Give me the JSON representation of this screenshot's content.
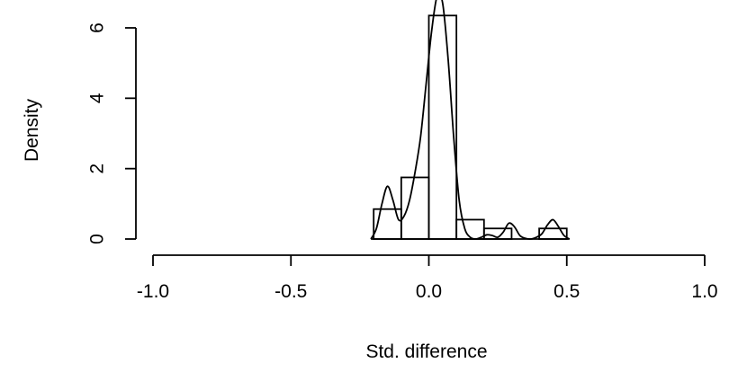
{
  "chart_data": {
    "type": "histogram",
    "title": "",
    "xlabel": "Std. difference",
    "ylabel": "Density",
    "xlim": [
      -1.0,
      1.0
    ],
    "ylim": [
      0,
      6.5
    ],
    "x_ticks": [
      -1.0,
      -0.5,
      0.0,
      0.5,
      1.0
    ],
    "x_tick_labels": [
      "-1.0",
      "-0.5",
      "0.0",
      "0.5",
      "1.0"
    ],
    "y_ticks": [
      0,
      2,
      4,
      6
    ],
    "y_tick_labels": [
      "0",
      "2",
      "4",
      "6"
    ],
    "bins": [
      {
        "x0": -0.2,
        "x1": -0.1,
        "density": 0.85
      },
      {
        "x0": -0.1,
        "x1": 0.0,
        "density": 1.75
      },
      {
        "x0": 0.0,
        "x1": 0.1,
        "density": 6.35
      },
      {
        "x0": 0.1,
        "x1": 0.2,
        "density": 0.55
      },
      {
        "x0": 0.2,
        "x1": 0.3,
        "density": 0.3
      },
      {
        "x0": 0.3,
        "x1": 0.4,
        "density": 0.0
      },
      {
        "x0": 0.4,
        "x1": 0.5,
        "density": 0.3
      }
    ],
    "density_curve": {
      "x": [
        -0.21,
        -0.19,
        -0.17,
        -0.15,
        -0.13,
        -0.11,
        -0.09,
        -0.07,
        -0.05,
        -0.03,
        -0.01,
        0.01,
        0.03,
        0.05,
        0.07,
        0.09,
        0.11,
        0.13,
        0.15,
        0.17,
        0.19,
        0.21,
        0.23,
        0.25,
        0.27,
        0.29,
        0.31,
        0.33,
        0.35,
        0.37,
        0.39,
        0.41,
        0.43,
        0.45,
        0.47,
        0.49,
        0.51
      ],
      "y": [
        0.0,
        0.3,
        1.0,
        1.5,
        1.1,
        0.55,
        0.65,
        1.1,
        1.9,
        2.9,
        4.4,
        5.9,
        6.9,
        6.7,
        5.1,
        2.9,
        1.1,
        0.3,
        0.05,
        0.0,
        0.05,
        0.12,
        0.1,
        0.05,
        0.2,
        0.45,
        0.35,
        0.1,
        0.02,
        0.0,
        0.05,
        0.15,
        0.4,
        0.55,
        0.35,
        0.1,
        0.0
      ]
    }
  }
}
